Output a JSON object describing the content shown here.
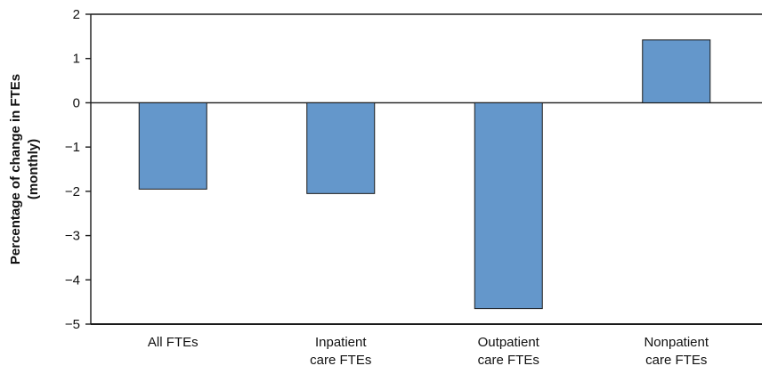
{
  "chart_data": {
    "type": "bar",
    "title": "",
    "xlabel": "",
    "ylabel": [
      "Percentage of change in FTEs",
      "(monthly)"
    ],
    "categories": [
      [
        "All FTEs"
      ],
      [
        "Inpatient",
        "care FTEs"
      ],
      [
        "Outpatient",
        "care FTEs"
      ],
      [
        "Nonpatient",
        "care FTEs"
      ]
    ],
    "series": [
      {
        "values": [
          -1.95,
          -2.05,
          -4.65,
          1.42
        ]
      }
    ],
    "ylim": [
      -5,
      2
    ],
    "yticks": [
      2,
      1,
      0,
      -1,
      -2,
      -3,
      -4,
      -5
    ],
    "ytick_labels": [
      "2",
      "1",
      "0",
      "−1",
      "−2",
      "−3",
      "−4",
      "−5"
    ],
    "grid": false,
    "legend": "none",
    "colors": {
      "bar_fill": "#6497cb",
      "bar_stroke": "#1a1a1a",
      "axis": "#1a1a1a",
      "zero_line": "#1a1a1a"
    }
  }
}
